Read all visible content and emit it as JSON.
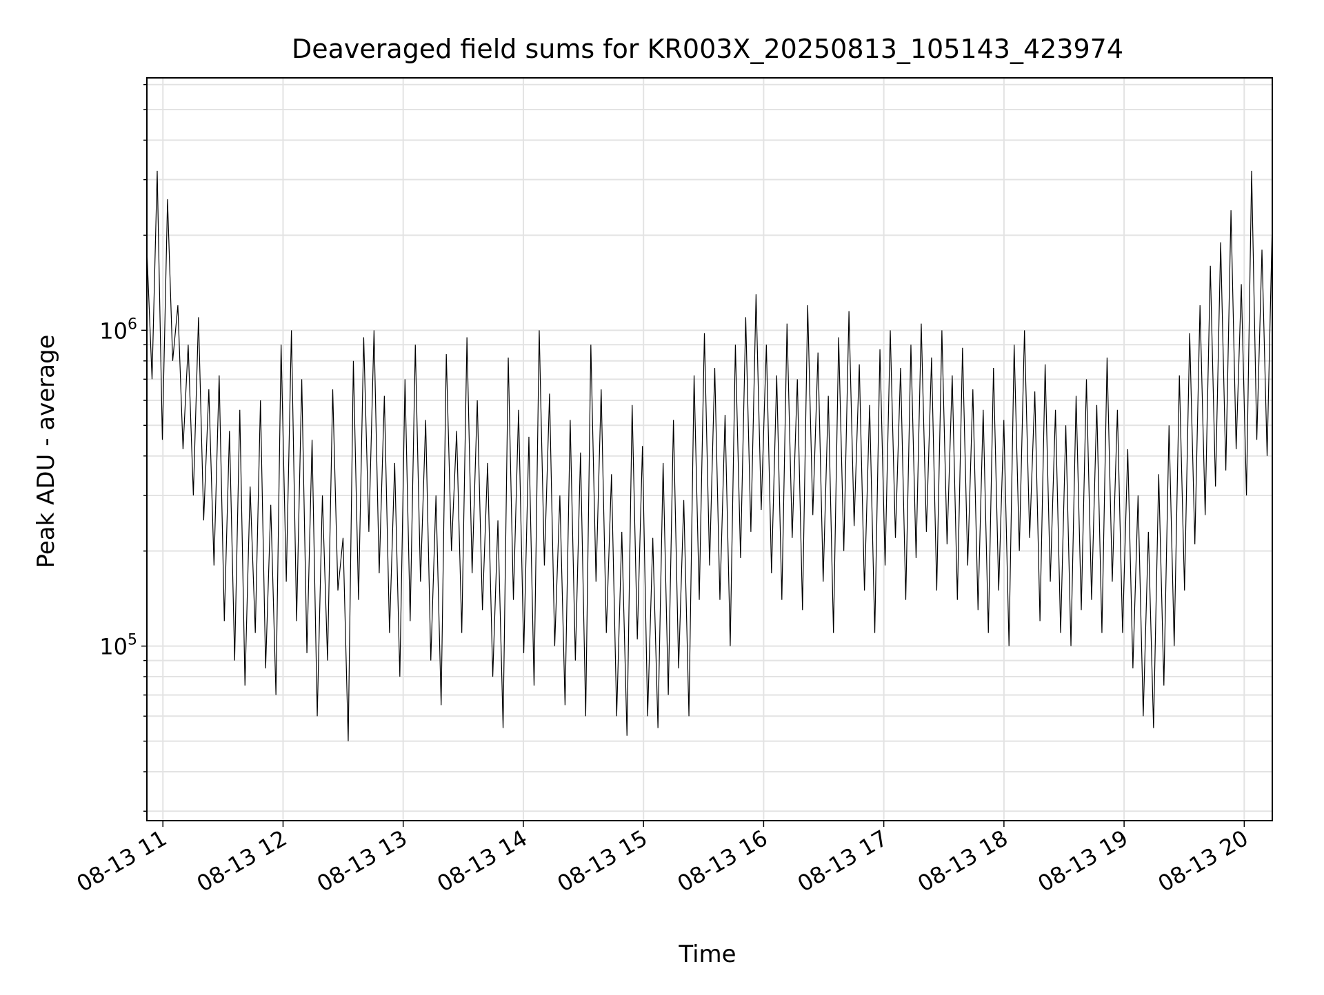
{
  "chart_data": {
    "type": "line",
    "title": "Deaveraged field sums for KR003X_20250813_105143_423974",
    "xlabel": "Time",
    "ylabel": "Peak ADU - average",
    "x_ticks": [
      "08-13 11",
      "08-13 12",
      "08-13 13",
      "08-13 14",
      "08-13 15",
      "08-13 16",
      "08-13 17",
      "08-13 18",
      "08-13 19",
      "08-13 20"
    ],
    "y_ticks": [
      {
        "base": "10",
        "exp": "5",
        "value": 100000
      },
      {
        "base": "10",
        "exp": "6",
        "value": 1000000
      }
    ],
    "xlim": [
      "2025-08-13 10:52",
      "2025-08-13 20:14"
    ],
    "ylim": [
      28000,
      6300000
    ],
    "y_scale": "log",
    "grid": true,
    "line_color": "#000000",
    "series": [
      {
        "x_start": "2025-08-13 10:52",
        "x_end": "2025-08-13 20:14",
        "values": [
          1800000,
          700000,
          3200000,
          450000,
          2600000,
          800000,
          1200000,
          420000,
          900000,
          300000,
          1100000,
          250000,
          650000,
          180000,
          720000,
          120000,
          480000,
          90000,
          560000,
          75000,
          320000,
          110000,
          600000,
          85000,
          280000,
          70000,
          900000,
          160000,
          1000000,
          120000,
          700000,
          95000,
          450000,
          60000,
          300000,
          90000,
          650000,
          150000,
          220000,
          50000,
          800000,
          140000,
          950000,
          230000,
          1000000,
          170000,
          620000,
          110000,
          380000,
          80000,
          700000,
          120000,
          900000,
          160000,
          520000,
          90000,
          300000,
          65000,
          840000,
          200000,
          480000,
          110000,
          950000,
          170000,
          600000,
          130000,
          380000,
          80000,
          250000,
          55000,
          820000,
          140000,
          560000,
          95000,
          460000,
          75000,
          1000000,
          180000,
          630000,
          100000,
          300000,
          65000,
          520000,
          90000,
          410000,
          60000,
          900000,
          160000,
          650000,
          110000,
          350000,
          60000,
          230000,
          52000,
          580000,
          105000,
          430000,
          60000,
          220000,
          55000,
          380000,
          70000,
          520000,
          85000,
          290000,
          60000,
          720000,
          140000,
          980000,
          180000,
          760000,
          140000,
          540000,
          100000,
          900000,
          190000,
          1100000,
          230000,
          1300000,
          270000,
          900000,
          170000,
          720000,
          140000,
          1050000,
          220000,
          700000,
          130000,
          1200000,
          260000,
          850000,
          160000,
          620000,
          110000,
          950000,
          200000,
          1150000,
          240000,
          780000,
          150000,
          580000,
          110000,
          870000,
          180000,
          1000000,
          220000,
          760000,
          140000,
          900000,
          190000,
          1050000,
          230000,
          820000,
          150000,
          1000000,
          210000,
          720000,
          140000,
          880000,
          180000,
          650000,
          130000,
          560000,
          110000,
          760000,
          150000,
          520000,
          100000,
          900000,
          200000,
          1000000,
          220000,
          640000,
          120000,
          780000,
          160000,
          560000,
          110000,
          500000,
          100000,
          620000,
          130000,
          700000,
          140000,
          580000,
          110000,
          820000,
          160000,
          560000,
          110000,
          420000,
          85000,
          300000,
          60000,
          230000,
          55000,
          350000,
          75000,
          500000,
          100000,
          720000,
          150000,
          980000,
          210000,
          1200000,
          260000,
          1600000,
          320000,
          1900000,
          360000,
          2400000,
          420000,
          1400000,
          300000,
          3200000,
          450000,
          1800000,
          400000,
          2200000
        ]
      }
    ]
  }
}
